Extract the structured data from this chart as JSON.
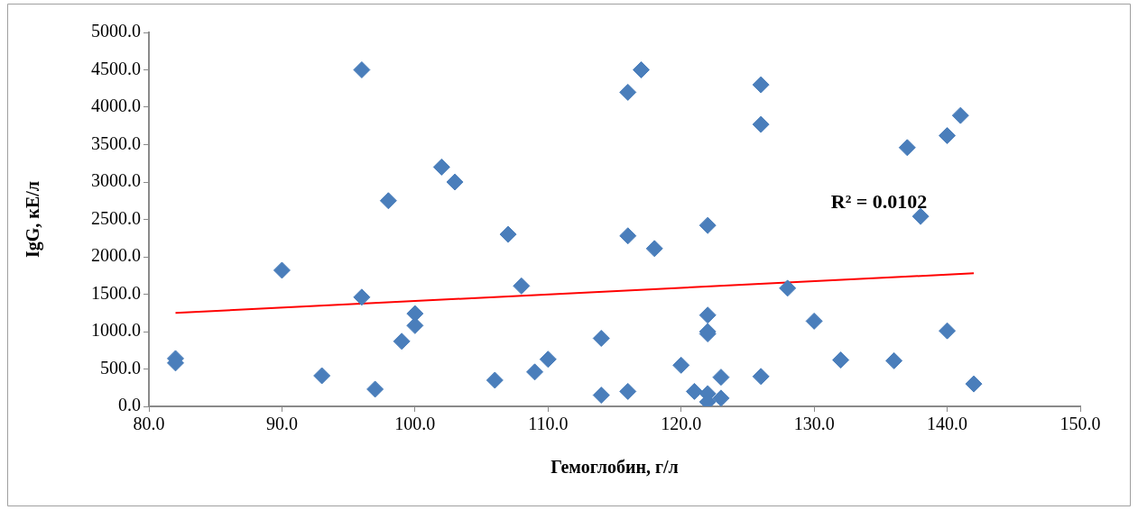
{
  "chart_data": {
    "type": "scatter",
    "xlabel": "Гемоглобин, г/л",
    "ylabel": "IgG, кЕ/л",
    "xlim": [
      80,
      150
    ],
    "ylim": [
      0,
      5000
    ],
    "xticks": [
      {
        "value": 80,
        "label": "80.0"
      },
      {
        "value": 90,
        "label": "90.0"
      },
      {
        "value": 100,
        "label": "100.0"
      },
      {
        "value": 110,
        "label": "110.0"
      },
      {
        "value": 120,
        "label": "120.0"
      },
      {
        "value": 130,
        "label": "130.0"
      },
      {
        "value": 140,
        "label": "140.0"
      },
      {
        "value": 150,
        "label": "150.0"
      }
    ],
    "yticks": [
      {
        "value": 0,
        "label": "0.0"
      },
      {
        "value": 500,
        "label": "500.0"
      },
      {
        "value": 1000,
        "label": "1000.0"
      },
      {
        "value": 1500,
        "label": "1500.0"
      },
      {
        "value": 2000,
        "label": "2000.0"
      },
      {
        "value": 2500,
        "label": "2500.0"
      },
      {
        "value": 3000,
        "label": "3000.0"
      },
      {
        "value": 3500,
        "label": "3500.0"
      },
      {
        "value": 4000,
        "label": "4000.0"
      },
      {
        "value": 4500,
        "label": "4500.0"
      },
      {
        "value": 5000,
        "label": "5000.0"
      }
    ],
    "grid": false,
    "legend": false,
    "marker": "diamond",
    "series": [
      {
        "color": "#4a7ebb",
        "x": [
          82,
          82,
          90,
          93,
          96,
          96,
          97,
          98,
          99,
          100,
          100,
          102,
          103,
          106,
          107,
          108,
          109,
          110,
          114,
          114,
          116,
          116,
          116,
          117,
          118,
          120,
          121,
          122,
          122,
          122,
          122,
          122,
          122,
          123,
          123,
          126,
          126,
          126,
          128,
          130,
          132,
          136,
          137,
          138,
          140,
          140,
          141,
          142
        ],
        "values": [
          640,
          580,
          1820,
          410,
          4500,
          1460,
          230,
          2750,
          870,
          1240,
          1080,
          3200,
          3000,
          350,
          2300,
          1610,
          460,
          630,
          910,
          150,
          4200,
          2280,
          200,
          4500,
          2110,
          550,
          200,
          2420,
          1220,
          1000,
          970,
          170,
          60,
          390,
          110,
          4300,
          3770,
          400,
          1580,
          1140,
          620,
          610,
          3460,
          2540,
          3620,
          1010,
          3890,
          300
        ]
      },
      {
        "type": "line",
        "color": "#ff0000",
        "marker": "none",
        "x": [
          82,
          142
        ],
        "values": [
          1250,
          1780
        ]
      }
    ],
    "annotations": [
      "R² = 0.0102"
    ]
  }
}
